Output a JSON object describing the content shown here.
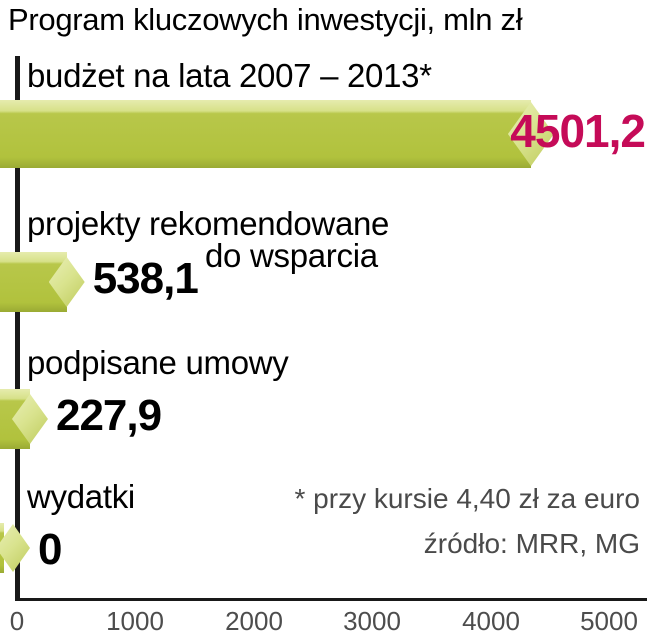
{
  "title": "Program kluczowych inwestycji, mln zł",
  "chart_data": {
    "type": "bar",
    "orientation": "horizontal",
    "title": "Program kluczowych inwestycji, mln zł",
    "unit": "mln zł",
    "categories": [
      "budżet na lata 2007 – 2013*",
      "projekty rekomendowane do wsparcia",
      "podpisane umowy",
      "wydatki"
    ],
    "values": [
      4501.2,
      538.1,
      227.9,
      0
    ],
    "value_labels": [
      "4501,2",
      "538,1",
      "227,9",
      "0"
    ],
    "xlim": [
      0,
      5000
    ],
    "x_ticks": [
      0,
      1000,
      2000,
      3000,
      4000,
      5000
    ],
    "grid": false,
    "legend": false,
    "footnote": "* przy kursie 4,40 zł za euro",
    "source": "źródło: MRR, MG",
    "colors": {
      "bar": "#b1c23d",
      "bar_light": "#dbe492",
      "bar_dark": "#9aaa34",
      "highlight_value": "#c50b58",
      "axis_text": "#4d4d4d",
      "note_text": "#4a4a4a",
      "label_text": "#000000"
    }
  },
  "labels": {
    "row1": "budżet na lata 2007 – 2013*",
    "row2_line1": "projekty rekomendowane",
    "row2_line2": "do wsparcia",
    "row3": "podpisane umowy",
    "row4": "wydatki"
  },
  "values": {
    "row1": "4501,2",
    "row2": "538,1",
    "row3": "227,9",
    "row4": "0"
  },
  "ticks": [
    "0",
    "1000",
    "2000",
    "3000",
    "4000",
    "5000"
  ],
  "notes": {
    "footnote": "* przy kursie 4,40 zł za euro",
    "source": "źródło: MRR, MG"
  }
}
